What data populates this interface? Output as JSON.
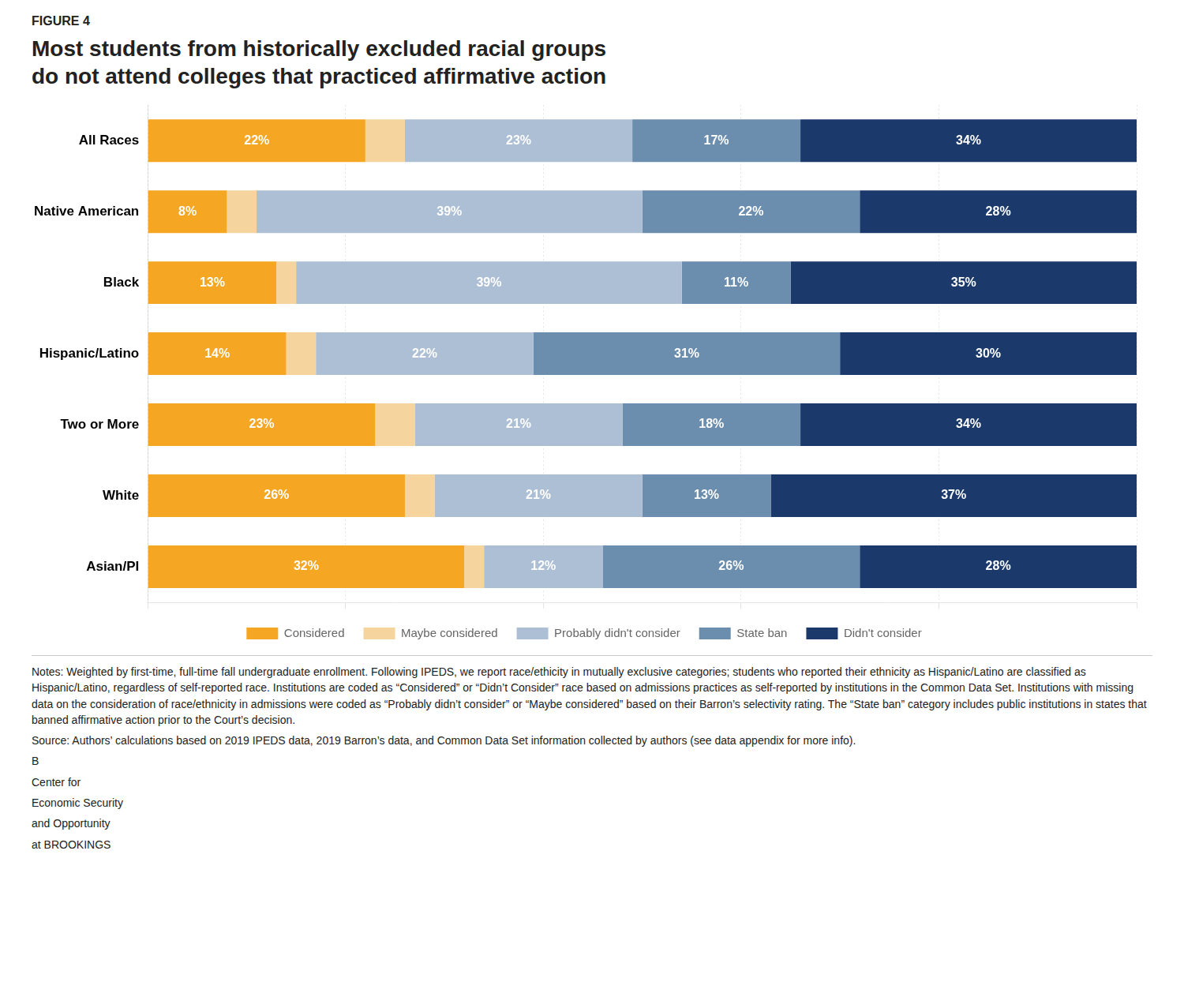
{
  "chart_data": {
    "type": "bar",
    "orientation": "horizontal",
    "stacked": true,
    "subtitle": "FIGURE 4",
    "title": "Most students from historically excluded racial groups\ndo not attend colleges that practiced affirmative action",
    "categories": [
      "All Races",
      "Native American",
      "Black",
      "Hispanic/Latino",
      "Two or More",
      "White",
      "Asian/PI"
    ],
    "series": [
      {
        "name": "Considered",
        "color": "#F5A623",
        "values": [
          22,
          8,
          13,
          14,
          23,
          26,
          32
        ],
        "value_labels": [
          "22%",
          "8%",
          "13%",
          "14%",
          "23%",
          "26%",
          "32%"
        ]
      },
      {
        "name": "Maybe considered",
        "color": "#F5D49E",
        "values": [
          4,
          3,
          2,
          3,
          4,
          3,
          2
        ],
        "value_labels": [
          null,
          null,
          null,
          null,
          null,
          null,
          null
        ]
      },
      {
        "name": "Probably didn't consider",
        "color": "#ADBFD4",
        "values": [
          23,
          39,
          39,
          22,
          21,
          21,
          12
        ],
        "value_labels": [
          "23%",
          "39%",
          "39%",
          "22%",
          "21%",
          "21%",
          "12%"
        ]
      },
      {
        "name": "State ban",
        "color": "#6B8DAE",
        "values": [
          17,
          22,
          11,
          31,
          18,
          13,
          26
        ],
        "value_labels": [
          "17%",
          "22%",
          "11%",
          "31%",
          "18%",
          "13%",
          "26%"
        ]
      },
      {
        "name": "Didn't consider",
        "color": "#1B3A6B",
        "values": [
          34,
          28,
          35,
          30,
          34,
          37,
          28
        ],
        "value_labels": [
          "34%",
          "28%",
          "35%",
          "30%",
          "34%",
          "37%",
          "28%"
        ]
      }
    ],
    "xlim": [
      0,
      100
    ],
    "xticks": [
      0,
      20,
      40,
      60,
      80,
      100
    ],
    "grid": true,
    "tick_labels": "y",
    "data_labels": true,
    "legend": "bottom",
    "annotations": [
      "Notes: Weighted by first-time, full-time fall undergraduate enrollment. Following IPEDS, we report race/ethicity in mutually exclusive categories; students who reported their ethnicity as Hispanic/Latino are classified as Hispanic/Latino, regardless of self-reported race. Institutions are coded as “Considered” or “Didn’t Consider” race based on admissions practices as self-reported by institutions in the Common Data Set. Institutions with missing data on the consideration of race/ethnicity in admissions were coded as “Probably didn’t consider” or “Maybe considered” based on their Barron’s selectivity rating. The “State ban” category includes public institutions in states that banned affirmative action prior to the Court’s decision.",
      "Source: Authors’ calculations based on 2019 IPEDS data, 2019 Barron’s data, and Common Data Set information collected by authors (see data appendix for more info).",
      "B",
      "Center for",
      "Economic Security",
      "and Opportunity",
      "at BROOKINGS"
    ]
  }
}
